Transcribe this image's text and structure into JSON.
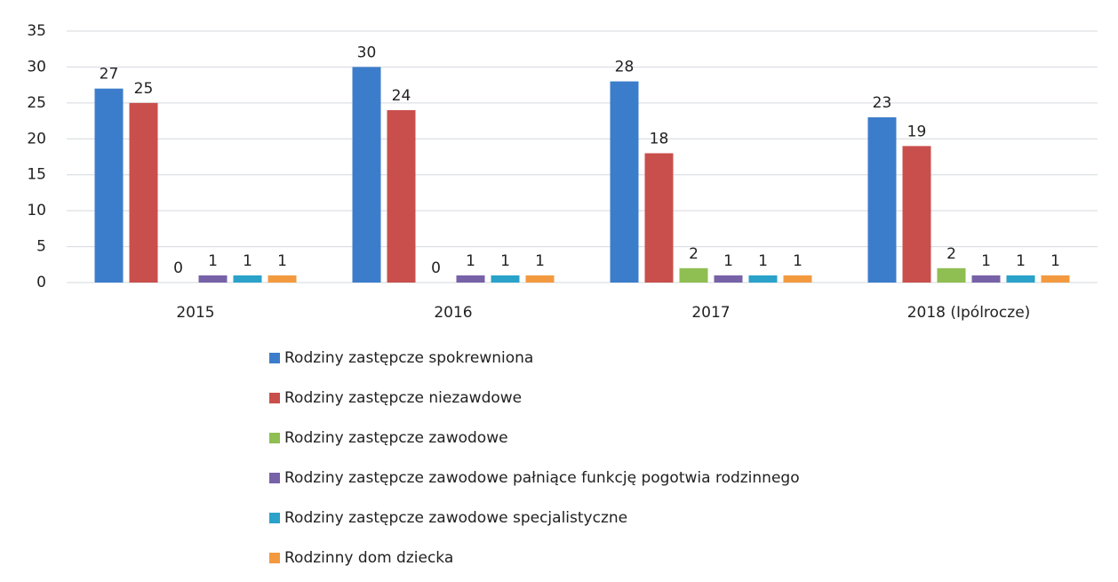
{
  "chart_data": {
    "type": "bar",
    "categories": [
      "2015",
      "2016",
      "2017",
      "2018 (Ipólrocze)"
    ],
    "series": [
      {
        "name": "Rodziny zastępcze spokrewniona",
        "color": "#3c7dcb",
        "values": [
          27,
          30,
          28,
          23
        ]
      },
      {
        "name": "Rodziny zastępcze niezawdowe",
        "color": "#c94f4c",
        "values": [
          25,
          24,
          18,
          19
        ]
      },
      {
        "name": "Rodziny zastępcze zawodowe",
        "color": "#8fbe52",
        "values": [
          0,
          0,
          2,
          2
        ]
      },
      {
        "name": "Rodziny zastępcze zawodowe pałniące funkcję pogotwia rodzinnego",
        "color": "#7762a8",
        "values": [
          1,
          1,
          1,
          1
        ]
      },
      {
        "name": "Rodziny zastępcze zawodowe specjalistyczne",
        "color": "#2aa2c9",
        "values": [
          1,
          1,
          1,
          1
        ]
      },
      {
        "name": "Rodzinny dom dziecka",
        "color": "#f39a40",
        "values": [
          1,
          1,
          1,
          1
        ]
      }
    ],
    "ylim": [
      0,
      35
    ],
    "yticks": [
      0,
      5,
      10,
      15,
      20,
      25,
      30,
      35
    ],
    "grid": true,
    "legend": "bottom"
  }
}
